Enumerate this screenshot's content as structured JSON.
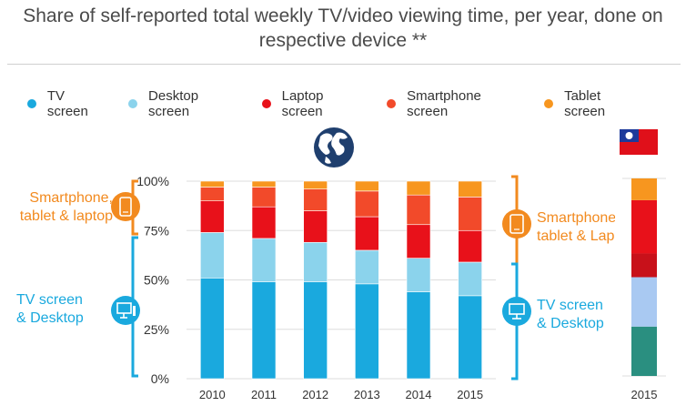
{
  "title": "Share of self-reported total weekly TV/video viewing time, per year, done on respective device **",
  "legend": [
    {
      "label": "TV screen",
      "color": "#1aa9de"
    },
    {
      "label": "Desktop screen",
      "color": "#8bd3ec"
    },
    {
      "label": "Laptop screen",
      "color": "#e8111a"
    },
    {
      "label": "Smartphone screen",
      "color": "#f24a2a"
    },
    {
      "label": "Tablet screen",
      "color": "#f7961f"
    }
  ],
  "annotations": {
    "left_top": "Smartphone,\ntablet & laptop",
    "left_bottom": "TV screen\n& Desktop",
    "right_top": "Smartphone\ntablet & Lap",
    "right_bottom": "TV screen\n& Desktop",
    "orange": "#f28a1f",
    "blue": "#1aa9de"
  },
  "icons": [
    "globe-icon",
    "taiwan-flag-icon",
    "smartphone-icon",
    "tablet-icon",
    "desktop-icon",
    "monitor-icon"
  ],
  "chart_data": [
    {
      "type": "bar",
      "stacked": true,
      "categories": [
        "2010",
        "2011",
        "2012",
        "2013",
        "2014",
        "2015"
      ],
      "ylim": [
        0,
        100
      ],
      "yticks": [
        "0%",
        "25%",
        "50%",
        "75%",
        "100%"
      ],
      "series": [
        {
          "name": "TV screen",
          "color": "#1aa9de",
          "values": [
            51,
            49,
            49,
            48,
            44,
            42
          ]
        },
        {
          "name": "Desktop screen",
          "color": "#8bd3ec",
          "values": [
            23,
            22,
            20,
            17,
            17,
            17
          ]
        },
        {
          "name": "Laptop screen",
          "color": "#e8111a",
          "values": [
            16,
            16,
            16,
            17,
            17,
            16
          ]
        },
        {
          "name": "Smartphone screen",
          "color": "#f24a2a",
          "values": [
            7,
            10,
            11,
            13,
            15,
            17
          ]
        },
        {
          "name": "Tablet screen",
          "color": "#f7961f",
          "values": [
            3,
            3,
            4,
            5,
            7,
            8
          ]
        }
      ]
    },
    {
      "type": "bar",
      "stacked": true,
      "categories": [
        "2015"
      ],
      "ylim": [
        0,
        100
      ],
      "series": [
        {
          "name": "TV screen",
          "color": "#2a8f80",
          "values": [
            25
          ]
        },
        {
          "name": "Desktop screen",
          "color": "#a9c9f2",
          "values": [
            25
          ]
        },
        {
          "name": "Laptop screen",
          "color": "#c8111a",
          "values": [
            12
          ]
        },
        {
          "name": "Smartphone screen",
          "color": "#e8111a",
          "values": [
            27
          ]
        },
        {
          "name": "Tablet screen",
          "color": "#f7961f",
          "values": [
            11
          ]
        }
      ]
    }
  ]
}
